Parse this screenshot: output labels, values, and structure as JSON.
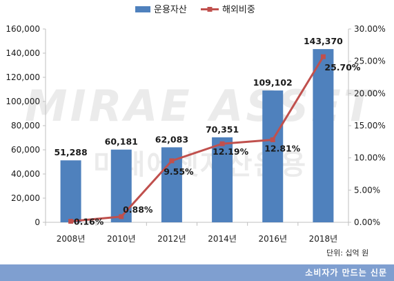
{
  "chart_data": {
    "type": "bar",
    "categories": [
      "2008년",
      "2010년",
      "2012년",
      "2014년",
      "2016년",
      "2018년"
    ],
    "series": [
      {
        "name": "운용자산",
        "type": "bar",
        "axis": "left",
        "values": [
          51288,
          60181,
          62083,
          70351,
          109102,
          143370
        ],
        "labels": [
          "51,288",
          "60,181",
          "62,083",
          "70,351",
          "109,102",
          "143,370"
        ]
      },
      {
        "name": "해외비중",
        "type": "line",
        "axis": "right",
        "values": [
          0.16,
          0.88,
          9.55,
          12.19,
          12.81,
          25.7
        ],
        "labels": [
          "0.16%",
          "0.88%",
          "9.55%",
          "12.19%",
          "12.81%",
          "25.70%"
        ]
      }
    ],
    "y_left": {
      "range": [
        0,
        160000
      ],
      "ticks": [
        0,
        20000,
        40000,
        60000,
        80000,
        100000,
        120000,
        140000,
        160000
      ],
      "tick_labels": [
        "0",
        "20,000",
        "40,000",
        "60,000",
        "80,000",
        "100,000",
        "120,000",
        "140,000",
        "160,000"
      ]
    },
    "y_right": {
      "range": [
        0,
        30
      ],
      "ticks": [
        0,
        5,
        10,
        15,
        20,
        25,
        30
      ],
      "tick_labels": [
        "0.00%",
        "5.00%",
        "10.00%",
        "15.00%",
        "20.00%",
        "25.00%",
        "30.00%"
      ]
    },
    "legend_position": "top-center",
    "grid": false,
    "colors": {
      "bar": "#4f81bd",
      "line": "#c0504d"
    }
  },
  "unit_note": "단위: 십억 원",
  "footer_text": "소비자가 만드는 신문",
  "footer_color": "#7f9fd0",
  "watermark": "MIRAE ASSET 미래에셋자산운용"
}
